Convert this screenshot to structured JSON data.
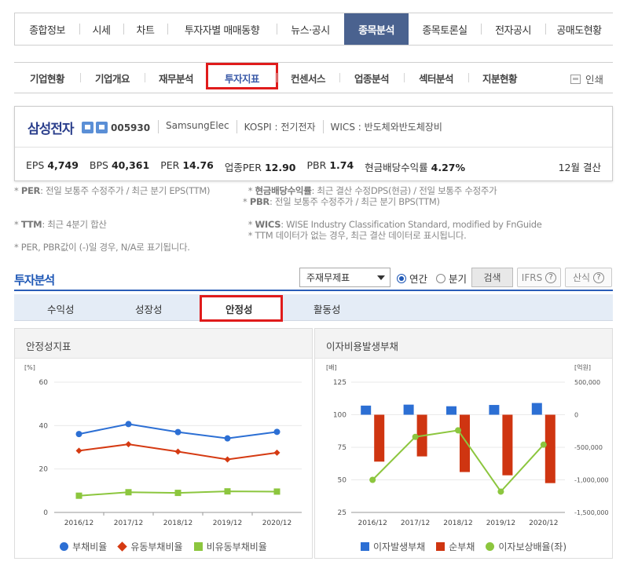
{
  "top_nav": [
    "종합정보",
    "시세",
    "차트",
    "투자자별 매매동향",
    "뉴스·공시",
    "종목분석",
    "종목토론실",
    "전자공시",
    "공매도현황"
  ],
  "sub_nav": [
    "기업현황",
    "기업개요",
    "재무분석",
    "투자지표",
    "컨센서스",
    "업종분석",
    "섹터분석",
    "지분현황"
  ],
  "print_label": "인쇄",
  "company": {
    "name": "삼성전자",
    "code": "005930",
    "eng": "SamsungElec",
    "market": "KOSPI : 전기전자",
    "wics": "WICS : 반도체와반도체장비",
    "metrics": [
      {
        "label": "EPS",
        "value": "4,749"
      },
      {
        "label": "BPS",
        "value": "40,361"
      },
      {
        "label": "PER",
        "value": "14.76"
      },
      {
        "label": "업종PER",
        "value": "12.90"
      },
      {
        "label": "PBR",
        "value": "1.74"
      },
      {
        "label": "현금배당수익률",
        "value": "4.27%"
      }
    ],
    "settlement": "12월 결산"
  },
  "notes": {
    "per_key": "PER",
    "per": ": 전일 보통주 수정주가 / 최근 분기 EPS(TTM)",
    "ttm_key": "TTM",
    "ttm": ": 최근 4분기 합산",
    "na": "* PER, PBR값이 (-)일 경우, N/A로 표기됩니다.",
    "div_key": "현금배당수익률",
    "div": ": 최근 결산 수정DPS(현금) / 전일 보통주 수정주가",
    "pbr_key": "PBR",
    "pbr": ": 전일 보통주 수정주가 / 최근 분기 BPS(TTM)",
    "wics_key": "WICS",
    "wics": ": WISE Industry Classification Standard, modified by FnGuide",
    "ttm_note": "* TTM 데이터가 없는 경우, 최근 결산 데이터로 표시됩니다."
  },
  "analysis": {
    "title": "투자분석",
    "select_value": "주재무제표",
    "radio_annual": "연간",
    "radio_quarter": "분기",
    "search_button": "검색",
    "ifrs_button": "IFRS",
    "calc_button": "산식",
    "tabs": [
      "수익성",
      "성장성",
      "안정성",
      "활동성"
    ]
  },
  "chart_data": [
    {
      "type": "line",
      "title": "안정성지표",
      "ylabel": "[%]",
      "ylim": [
        0,
        60
      ],
      "yticks": [
        "0",
        "20",
        "40",
        "60"
      ],
      "categories": [
        "2016/12",
        "2017/12",
        "2018/12",
        "2019/12",
        "2020/12"
      ],
      "series": [
        {
          "name": "부채비율",
          "color": "#2c6fd4",
          "marker": "circle",
          "values": [
            36.1,
            40.7,
            37.0,
            34.1,
            37.1
          ]
        },
        {
          "name": "유동부채비율",
          "color": "#d53a12",
          "marker": "diamond",
          "values": [
            28.4,
            31.4,
            28.0,
            24.4,
            27.5
          ]
        },
        {
          "name": "비유동부채비율",
          "color": "#8cc63e",
          "marker": "square",
          "values": [
            7.7,
            9.3,
            9.0,
            9.7,
            9.6
          ]
        }
      ],
      "legend": "bottom"
    },
    {
      "type": "bar",
      "title": "이자비용발생부채",
      "ylabel_left": "[배]",
      "ylabel_right": "[억원]",
      "ylim_left": [
        25,
        125
      ],
      "ylim_right": [
        -1500000,
        500000
      ],
      "yticks_left": [
        "25",
        "50",
        "75",
        "100",
        "125"
      ],
      "yticks_right": [
        "-1,500,000",
        "-1,000,000",
        "-500,000",
        "0",
        "500,000"
      ],
      "categories": [
        "2016/12",
        "2017/12",
        "2018/12",
        "2019/12",
        "2020/12"
      ],
      "series": [
        {
          "name": "이자발생부채",
          "color": "#2c6fd4",
          "axis": "right",
          "values": [
            140000,
            155000,
            130000,
            150000,
            180000
          ]
        },
        {
          "name": "순부채",
          "color": "#cf3511",
          "axis": "right",
          "values": [
            -720000,
            -640000,
            -880000,
            -930000,
            -1050000
          ]
        },
        {
          "name": "이자보상배율(좌)",
          "color": "#8cc63e",
          "axis": "left",
          "values": [
            50,
            83,
            88,
            41,
            77
          ]
        }
      ],
      "legend": "bottom"
    }
  ]
}
